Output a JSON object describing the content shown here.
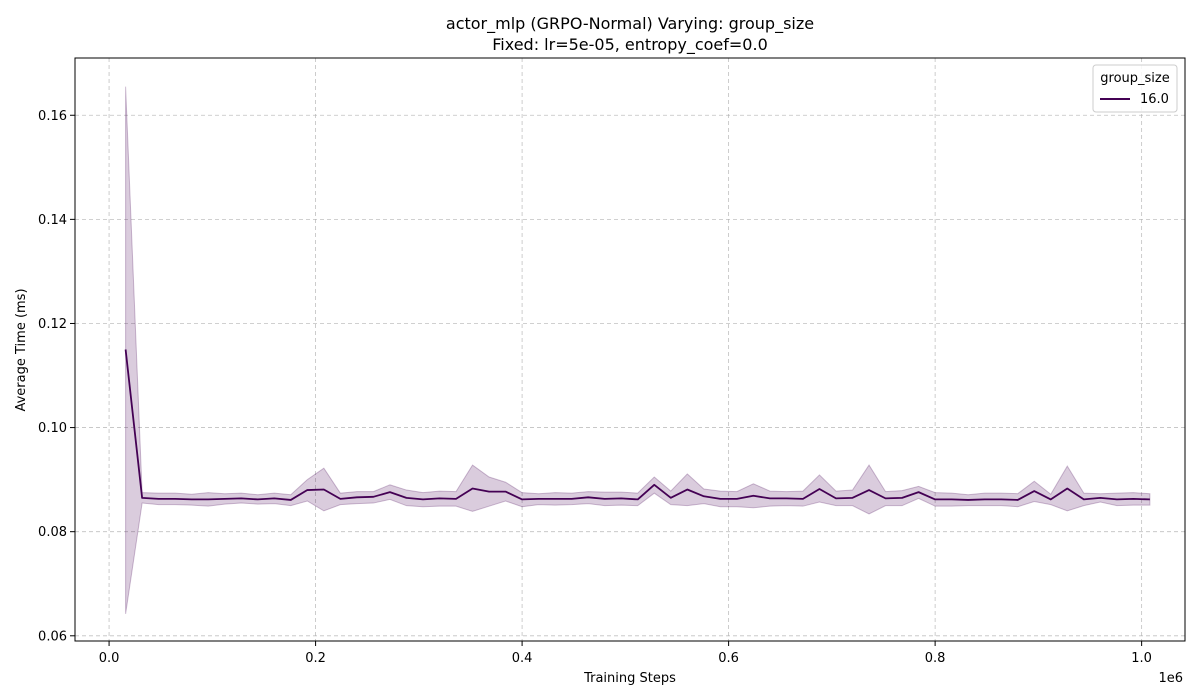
{
  "chart_data": {
    "type": "line",
    "title_line1": "actor_mlp (GRPO-Normal) Varying: group_size",
    "title_line2": "Fixed: lr=5e-05, entropy_coef=0.0",
    "xlabel": "Training Steps",
    "ylabel": "Average Time (ms)",
    "x_offset_label": "1e6",
    "xlim": [
      -0.033,
      1.042
    ],
    "ylim": [
      0.059,
      0.171
    ],
    "xticks": [
      0.0,
      0.2,
      0.4,
      0.6,
      0.8,
      1.0
    ],
    "xtick_labels": [
      "0.0",
      "0.2",
      "0.4",
      "0.6",
      "0.8",
      "1.0"
    ],
    "yticks": [
      0.06,
      0.08,
      0.1,
      0.12,
      0.14,
      0.16
    ],
    "ytick_labels": [
      "0.06",
      "0.08",
      "0.10",
      "0.12",
      "0.14",
      "0.16"
    ],
    "grid": true,
    "legend_title": "group_size",
    "legend_position": "upper right",
    "series": [
      {
        "name": "16.0",
        "color": "#440154",
        "band_color": "#440154",
        "x": [
          0.016,
          0.032,
          0.048,
          0.064,
          0.08,
          0.096,
          0.112,
          0.128,
          0.144,
          0.16,
          0.176,
          0.192,
          0.208,
          0.224,
          0.24,
          0.256,
          0.272,
          0.288,
          0.304,
          0.32,
          0.336,
          0.352,
          0.368,
          0.384,
          0.4,
          0.416,
          0.432,
          0.448,
          0.464,
          0.48,
          0.496,
          0.512,
          0.528,
          0.544,
          0.56,
          0.576,
          0.592,
          0.608,
          0.624,
          0.64,
          0.656,
          0.672,
          0.688,
          0.704,
          0.72,
          0.736,
          0.752,
          0.768,
          0.784,
          0.8,
          0.816,
          0.832,
          0.848,
          0.864,
          0.88,
          0.896,
          0.912,
          0.928,
          0.944,
          0.96,
          0.976,
          0.992,
          1.008
        ],
        "y": [
          0.115,
          0.0865,
          0.0863,
          0.0863,
          0.0862,
          0.0862,
          0.0863,
          0.0864,
          0.0862,
          0.0864,
          0.0861,
          0.088,
          0.0881,
          0.0863,
          0.0866,
          0.0867,
          0.0876,
          0.0865,
          0.0862,
          0.0864,
          0.0863,
          0.0883,
          0.0877,
          0.0877,
          0.0862,
          0.0863,
          0.0863,
          0.0863,
          0.0866,
          0.0863,
          0.0864,
          0.0862,
          0.089,
          0.0865,
          0.0881,
          0.0868,
          0.0863,
          0.0863,
          0.0869,
          0.0864,
          0.0864,
          0.0863,
          0.0882,
          0.0864,
          0.0865,
          0.088,
          0.0864,
          0.0865,
          0.0876,
          0.0862,
          0.0862,
          0.0861,
          0.0862,
          0.0862,
          0.0861,
          0.0878,
          0.0862,
          0.0883,
          0.0862,
          0.0865,
          0.0862,
          0.0863,
          0.0862
        ],
        "upper": [
          0.1655,
          0.0875,
          0.0874,
          0.0874,
          0.0872,
          0.0875,
          0.0873,
          0.0874,
          0.0871,
          0.0874,
          0.0871,
          0.09,
          0.0922,
          0.0874,
          0.0877,
          0.0877,
          0.089,
          0.088,
          0.0875,
          0.0878,
          0.0877,
          0.0928,
          0.0905,
          0.0895,
          0.0875,
          0.0873,
          0.0875,
          0.0874,
          0.0877,
          0.0876,
          0.0876,
          0.0874,
          0.0905,
          0.0878,
          0.0911,
          0.0882,
          0.0878,
          0.0877,
          0.0892,
          0.0878,
          0.0877,
          0.0878,
          0.0909,
          0.0878,
          0.088,
          0.0928,
          0.0877,
          0.0879,
          0.0887,
          0.0875,
          0.0874,
          0.0871,
          0.0874,
          0.0874,
          0.0873,
          0.0897,
          0.0872,
          0.0926,
          0.0874,
          0.0873,
          0.0874,
          0.0875,
          0.0873
        ],
        "lower": [
          0.0642,
          0.0855,
          0.0852,
          0.0852,
          0.0851,
          0.0849,
          0.0853,
          0.0855,
          0.0853,
          0.0854,
          0.085,
          0.0859,
          0.084,
          0.0852,
          0.0854,
          0.0855,
          0.0862,
          0.085,
          0.0848,
          0.0849,
          0.0849,
          0.0839,
          0.0849,
          0.0859,
          0.0848,
          0.0852,
          0.0851,
          0.0852,
          0.0854,
          0.085,
          0.0851,
          0.085,
          0.0874,
          0.0852,
          0.085,
          0.0854,
          0.0848,
          0.0848,
          0.0846,
          0.0849,
          0.085,
          0.0849,
          0.0857,
          0.085,
          0.085,
          0.0834,
          0.085,
          0.085,
          0.0864,
          0.0849,
          0.0849,
          0.085,
          0.085,
          0.085,
          0.0848,
          0.0858,
          0.0852,
          0.084,
          0.085,
          0.0857,
          0.085,
          0.0851,
          0.0851
        ]
      }
    ]
  }
}
